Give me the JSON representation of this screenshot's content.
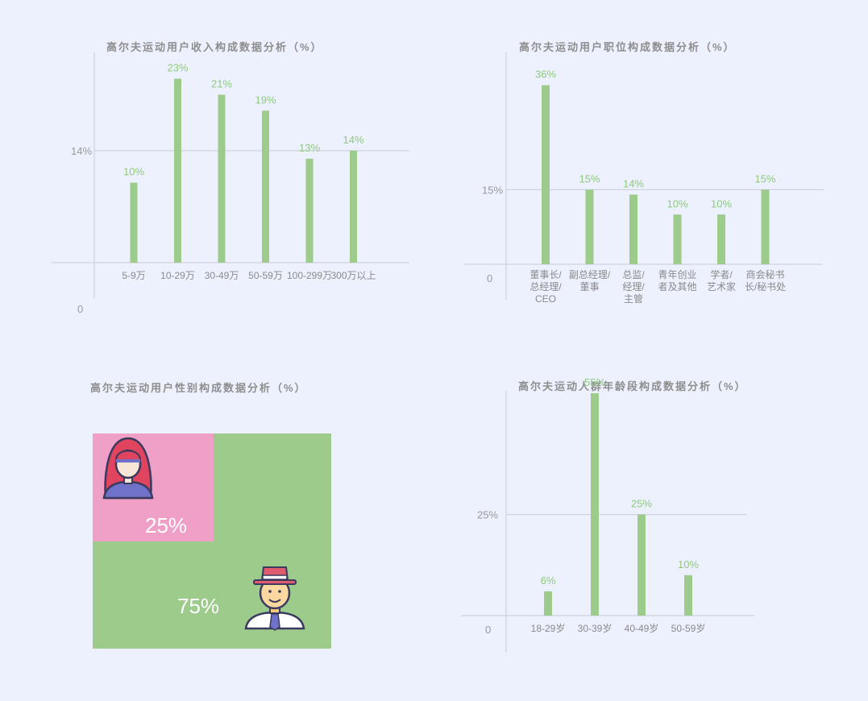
{
  "colors": {
    "background": "#edf1fd",
    "bar": "#9ccb8b",
    "label": "#8dcb7a",
    "female": "#f0a0c6",
    "male": "#9ccb8b"
  },
  "chart_data": [
    {
      "id": "income",
      "type": "bar",
      "title": "高尔夫运动用户收入构成数据分析（%）",
      "categories": [
        [
          "5-9万"
        ],
        [
          "10-29万"
        ],
        [
          "30-49万"
        ],
        [
          "50-59万"
        ],
        [
          "100-299万"
        ],
        [
          "300万以上"
        ]
      ],
      "values": [
        10,
        23,
        21,
        19,
        13,
        14
      ],
      "data_labels": [
        "10%",
        "23%",
        "21%",
        "19%",
        "13%",
        "14%"
      ],
      "y_ticks": [
        {
          "value": 0,
          "label": "0"
        },
        {
          "value": 14,
          "label": "14%"
        }
      ],
      "ylim": [
        0,
        28
      ],
      "reference_line": 14
    },
    {
      "id": "position",
      "type": "bar",
      "title": "高尔夫运动用户职位构成数据分析（%）",
      "categories": [
        [
          "董事长/",
          "总经理/",
          "CEO"
        ],
        [
          "副总经理/",
          "董事"
        ],
        [
          "总监/",
          "经理/",
          "主管"
        ],
        [
          "青年创业",
          "者及其他"
        ],
        [
          "学者/",
          "艺术家"
        ],
        [
          "商会秘书",
          "长/秘书处"
        ]
      ],
      "values": [
        36,
        15,
        14,
        10,
        10,
        15
      ],
      "data_labels": [
        "36%",
        "15%",
        "14%",
        "10%",
        "10%",
        "15%"
      ],
      "y_ticks": [
        {
          "value": 0,
          "label": "0"
        },
        {
          "value": 15,
          "label": "15%"
        }
      ],
      "ylim": [
        0,
        40
      ],
      "reference_line": 15
    },
    {
      "id": "gender",
      "type": "treemap",
      "title": "高尔夫运动用户性别构成数据分析（%）",
      "segments": [
        {
          "value": 25,
          "label": "25%",
          "icon": "woman-avatar-icon"
        },
        {
          "value": 75,
          "label": "75%",
          "icon": "man-hat-avatar-icon"
        }
      ]
    },
    {
      "id": "age",
      "type": "bar",
      "title": "高尔夫运动人群年龄段构成数据分析（%）",
      "categories": [
        [
          "18-29岁"
        ],
        [
          "30-39岁"
        ],
        [
          "40-49岁"
        ],
        [
          "50-59岁"
        ]
      ],
      "values": [
        6,
        55,
        25,
        10
      ],
      "data_labels": [
        "6%",
        "55%",
        "25%",
        "10%"
      ],
      "y_ticks": [
        {
          "value": 0,
          "label": "0"
        },
        {
          "value": 25,
          "label": "25%"
        }
      ],
      "ylim": [
        0,
        60
      ],
      "reference_line": 25
    }
  ]
}
